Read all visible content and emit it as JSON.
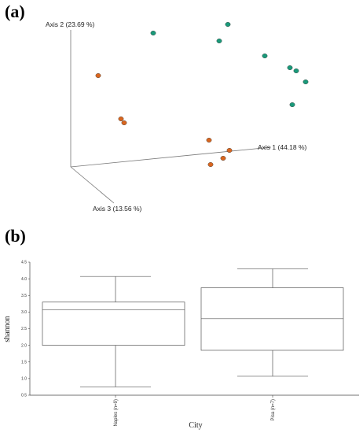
{
  "panel_a_label": "(a)",
  "panel_b_label": "(b)",
  "chart_data": [
    {
      "type": "scatter",
      "axis_labels": [
        "Axis 1 (44.18 %)",
        "Axis 2 (23.69 %)",
        "Axis 3 (13.56 %)"
      ],
      "series": [
        {
          "color": "#1a9a7a",
          "points": [
            [
              195,
              42
            ],
            [
              290,
              31
            ],
            [
              279,
              52
            ],
            [
              337,
              71
            ],
            [
              369,
              86
            ],
            [
              377,
              90
            ],
            [
              389,
              104
            ],
            [
              372,
              133
            ]
          ]
        },
        {
          "color": "#d9661f",
          "points": [
            [
              125,
              96
            ],
            [
              154,
              151
            ],
            [
              158,
              156
            ],
            [
              266,
              178
            ],
            [
              292,
              191
            ],
            [
              284,
              201
            ],
            [
              268,
              209
            ]
          ]
        }
      ]
    },
    {
      "type": "box",
      "xlabel": "City",
      "ylabel": "shannon",
      "ylim": [
        0.5,
        4.5
      ],
      "yticks": [
        "0.5",
        "1.0",
        "1.5",
        "2.0",
        "2.5",
        "3.0",
        "3.5",
        "4.0",
        "4.5"
      ],
      "categories": [
        "Naples (n=9)",
        "Pisa (n=7)"
      ],
      "boxes": [
        {
          "min": 0.75,
          "q1": 2.0,
          "median": 3.07,
          "q3": 3.3,
          "max": 4.07
        },
        {
          "min": 1.07,
          "q1": 1.85,
          "median": 2.8,
          "q3": 3.73,
          "max": 4.3
        }
      ]
    }
  ]
}
